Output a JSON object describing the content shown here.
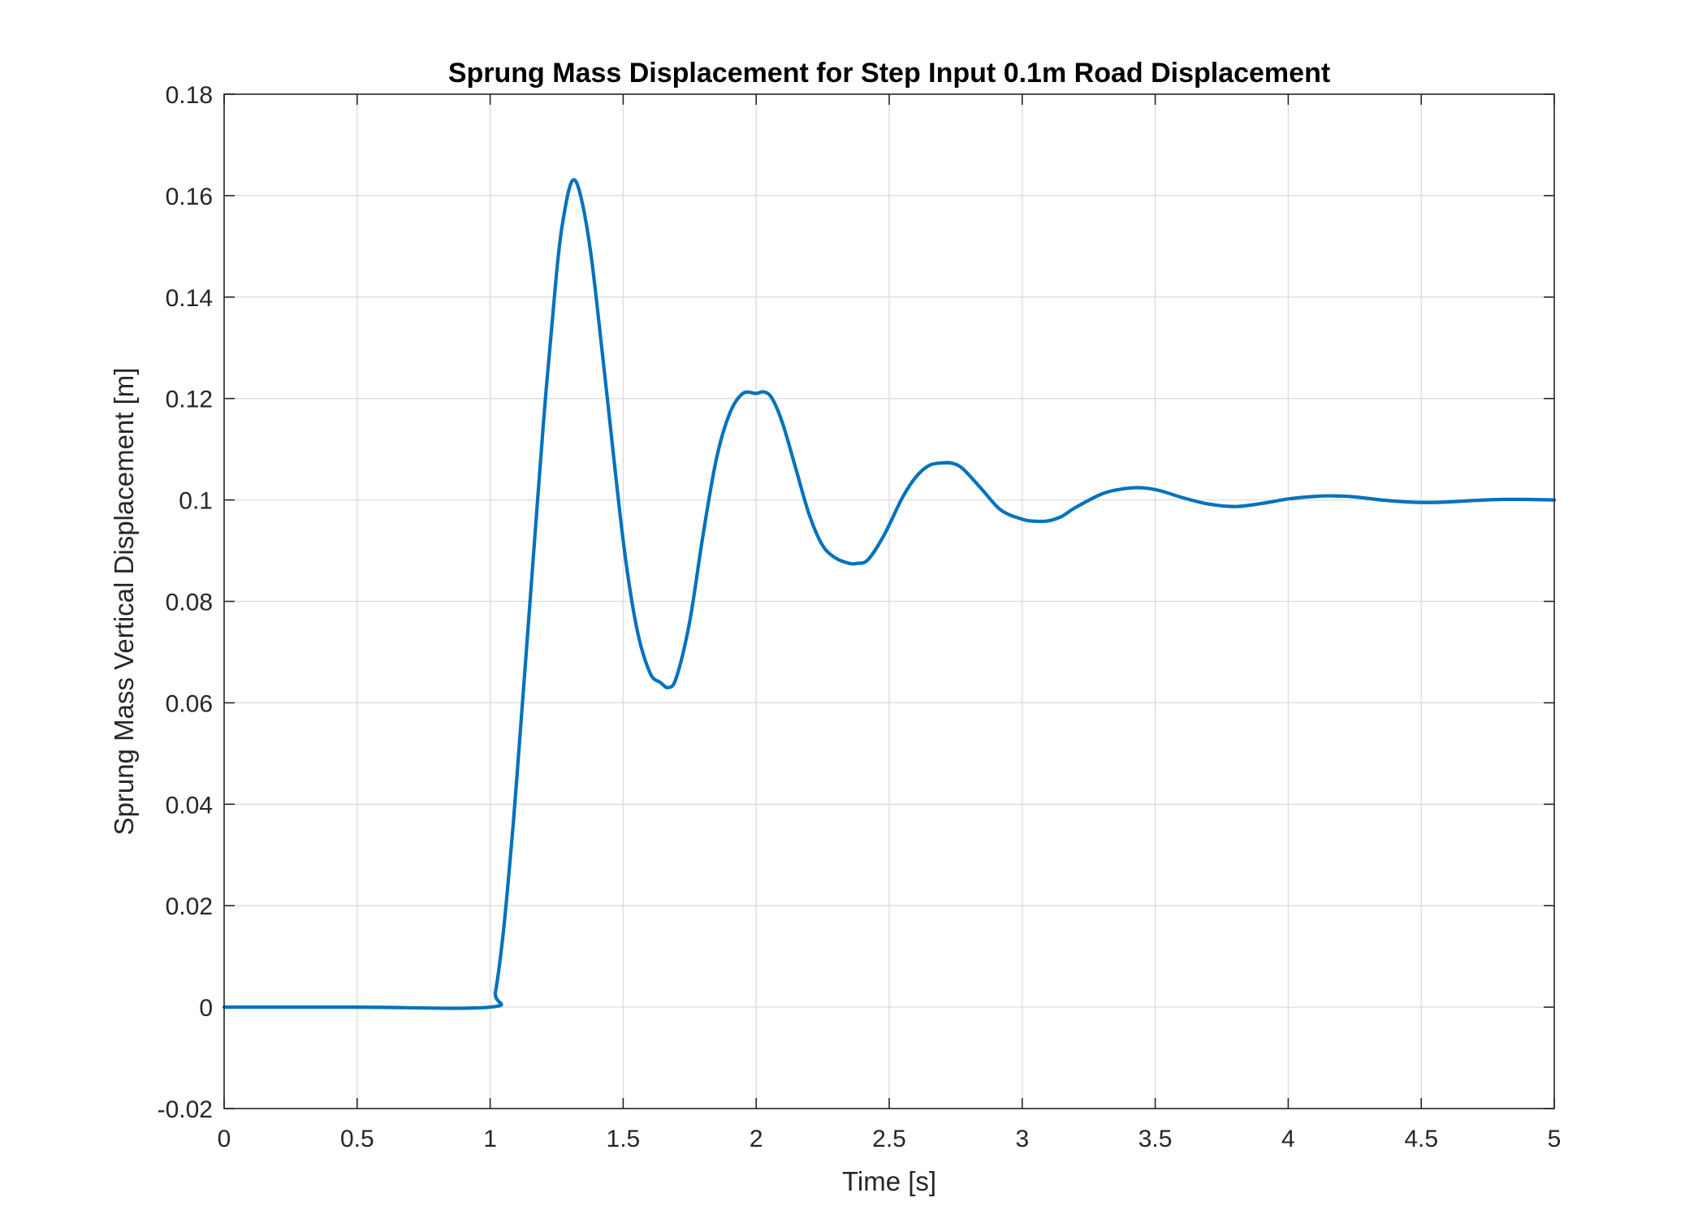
{
  "chart_data": {
    "type": "line",
    "title": "Sprung Mass Displacement for Step Input 0.1m Road Displacement",
    "xlabel": "Time [s]",
    "ylabel": "Sprung Mass Vertical Displacement [m]",
    "xlim": [
      0,
      5
    ],
    "ylim": [
      -0.02,
      0.18
    ],
    "xticks": [
      0,
      0.5,
      1,
      1.5,
      2,
      2.5,
      3,
      3.5,
      4,
      4.5,
      5
    ],
    "xtick_labels": [
      "0",
      "0.5",
      "1",
      "1.5",
      "2",
      "2.5",
      "3",
      "3.5",
      "4",
      "4.5",
      "5"
    ],
    "yticks": [
      -0.02,
      0,
      0.02,
      0.04,
      0.06,
      0.08,
      0.1,
      0.12,
      0.14,
      0.16,
      0.18
    ],
    "ytick_labels": [
      "-0.02",
      "0",
      "0.02",
      "0.04",
      "0.06",
      "0.08",
      "0.1",
      "0.12",
      "0.14",
      "0.16",
      "0.18"
    ],
    "grid": true,
    "line_color": "#0072BD",
    "series": [
      {
        "x": [
          0,
          0.5,
          1.0,
          1.02,
          1.05,
          1.08,
          1.1,
          1.15,
          1.2,
          1.25,
          1.28,
          1.31,
          1.34,
          1.38,
          1.43,
          1.5,
          1.55,
          1.6,
          1.64,
          1.67,
          1.7,
          1.75,
          1.8,
          1.85,
          1.9,
          1.95,
          2.0,
          2.03,
          2.06,
          2.1,
          2.15,
          2.2,
          2.25,
          2.3,
          2.35,
          2.38,
          2.42,
          2.48,
          2.55,
          2.6,
          2.65,
          2.7,
          2.74,
          2.78,
          2.85,
          2.92,
          3.0,
          3.05,
          3.1,
          3.15,
          3.2,
          3.3,
          3.38,
          3.45,
          3.52,
          3.6,
          3.7,
          3.8,
          3.9,
          4.0,
          4.1,
          4.17,
          4.25,
          4.35,
          4.45,
          4.52,
          4.6,
          4.7,
          4.8,
          4.9,
          5.0
        ],
        "y": [
          0,
          0,
          0,
          0.003,
          0.015,
          0.032,
          0.045,
          0.08,
          0.115,
          0.145,
          0.157,
          0.163,
          0.16,
          0.148,
          0.125,
          0.092,
          0.075,
          0.066,
          0.064,
          0.063,
          0.065,
          0.076,
          0.093,
          0.108,
          0.117,
          0.121,
          0.121,
          0.1213,
          0.12,
          0.115,
          0.106,
          0.097,
          0.091,
          0.0885,
          0.0875,
          0.0875,
          0.0882,
          0.093,
          0.1005,
          0.1045,
          0.1068,
          0.1073,
          0.1072,
          0.106,
          0.102,
          0.098,
          0.0962,
          0.0958,
          0.0959,
          0.0968,
          0.0985,
          0.1012,
          0.1022,
          0.1024,
          0.1018,
          0.1005,
          0.0992,
          0.0987,
          0.0993,
          0.1002,
          0.1007,
          0.1008,
          0.1006,
          0.1,
          0.0996,
          0.0995,
          0.0996,
          0.0999,
          0.1001,
          0.1001,
          0.1
        ]
      }
    ]
  }
}
